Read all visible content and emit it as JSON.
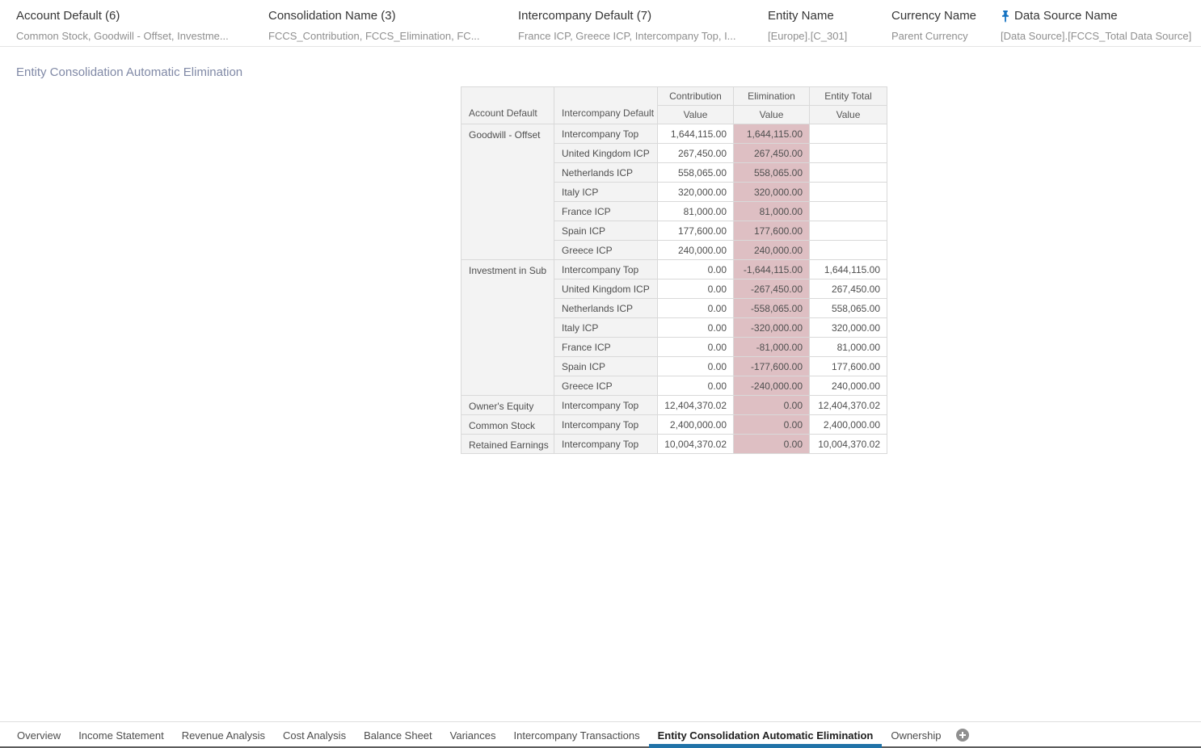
{
  "filters": [
    {
      "label": "Account Default (6)",
      "value": "Common Stock, Goodwill - Offset, Investme...",
      "pinned": false
    },
    {
      "label": "Consolidation Name (3)",
      "value": "FCCS_Contribution, FCCS_Elimination, FC...",
      "pinned": false
    },
    {
      "label": "Intercompany Default (7)",
      "value": "France ICP, Greece ICP, Intercompany Top, I...",
      "pinned": false
    },
    {
      "label": "Entity Name",
      "value": "[Europe].[C_301]",
      "pinned": false
    },
    {
      "label": "Currency Name",
      "value": "Parent Currency",
      "pinned": false
    },
    {
      "label": "Data Source Name",
      "value": "[Data Source].[FCCS_Total Data Source]",
      "pinned": true
    }
  ],
  "page_title": "Entity Consolidation Automatic Elimination",
  "table": {
    "row_headers": [
      "Account Default",
      "Intercompany Default"
    ],
    "col_headers": [
      "Contribution",
      "Elimination",
      "Entity Total"
    ],
    "value_label": "Value",
    "groups": [
      {
        "account": "Goodwill - Offset",
        "rows": [
          {
            "icp": "Intercompany Top",
            "contribution": "1,644,115.00",
            "elimination": "1,644,115.00",
            "entity_total": ""
          },
          {
            "icp": "United Kingdom ICP",
            "contribution": "267,450.00",
            "elimination": "267,450.00",
            "entity_total": ""
          },
          {
            "icp": "Netherlands ICP",
            "contribution": "558,065.00",
            "elimination": "558,065.00",
            "entity_total": ""
          },
          {
            "icp": "Italy ICP",
            "contribution": "320,000.00",
            "elimination": "320,000.00",
            "entity_total": ""
          },
          {
            "icp": "France ICP",
            "contribution": "81,000.00",
            "elimination": "81,000.00",
            "entity_total": ""
          },
          {
            "icp": "Spain ICP",
            "contribution": "177,600.00",
            "elimination": "177,600.00",
            "entity_total": ""
          },
          {
            "icp": "Greece ICP",
            "contribution": "240,000.00",
            "elimination": "240,000.00",
            "entity_total": ""
          }
        ]
      },
      {
        "account": "Investment in Sub",
        "rows": [
          {
            "icp": "Intercompany Top",
            "contribution": "0.00",
            "elimination": "-1,644,115.00",
            "entity_total": "1,644,115.00"
          },
          {
            "icp": "United Kingdom ICP",
            "contribution": "0.00",
            "elimination": "-267,450.00",
            "entity_total": "267,450.00"
          },
          {
            "icp": "Netherlands ICP",
            "contribution": "0.00",
            "elimination": "-558,065.00",
            "entity_total": "558,065.00"
          },
          {
            "icp": "Italy ICP",
            "contribution": "0.00",
            "elimination": "-320,000.00",
            "entity_total": "320,000.00"
          },
          {
            "icp": "France ICP",
            "contribution": "0.00",
            "elimination": "-81,000.00",
            "entity_total": "81,000.00"
          },
          {
            "icp": "Spain ICP",
            "contribution": "0.00",
            "elimination": "-177,600.00",
            "entity_total": "177,600.00"
          },
          {
            "icp": "Greece ICP",
            "contribution": "0.00",
            "elimination": "-240,000.00",
            "entity_total": "240,000.00"
          }
        ]
      },
      {
        "account": "Owner's Equity",
        "rows": [
          {
            "icp": "Intercompany Top",
            "contribution": "12,404,370.02",
            "elimination": "0.00",
            "entity_total": "12,404,370.02"
          }
        ]
      },
      {
        "account": "Common Stock",
        "rows": [
          {
            "icp": "Intercompany Top",
            "contribution": "2,400,000.00",
            "elimination": "0.00",
            "entity_total": "2,400,000.00"
          }
        ]
      },
      {
        "account": "Retained Earnings",
        "rows": [
          {
            "icp": "Intercompany Top",
            "contribution": "10,004,370.02",
            "elimination": "0.00",
            "entity_total": "10,004,370.02"
          }
        ]
      }
    ]
  },
  "tabs": {
    "items": [
      "Overview",
      "Income Statement",
      "Revenue Analysis",
      "Cost Analysis",
      "Balance Sheet",
      "Variances",
      "Intercompany Transactions",
      "Entity Consolidation Automatic Elimination",
      "Ownership"
    ],
    "active_index": 7
  },
  "colors": {
    "elimination_highlight": "#debfc3",
    "active_tab_underline": "#2173a8",
    "pin_icon_blue": "#1573c2",
    "title_text": "#8089a6",
    "header_cell_bg": "#f3f3f3"
  }
}
